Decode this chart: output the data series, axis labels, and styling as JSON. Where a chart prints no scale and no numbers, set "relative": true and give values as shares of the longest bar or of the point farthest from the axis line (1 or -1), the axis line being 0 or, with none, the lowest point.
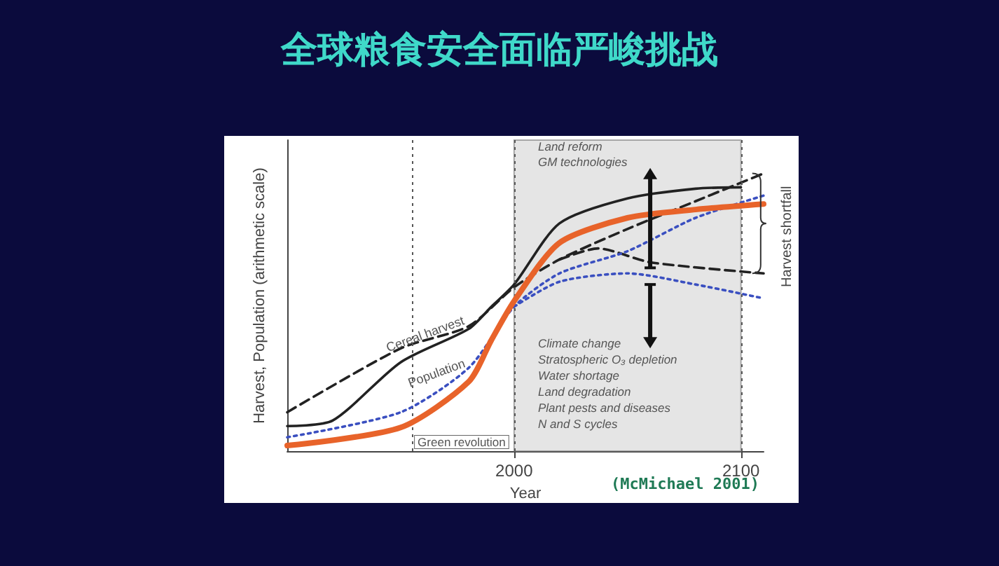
{
  "chart_data": {
    "type": "line",
    "title": "全球粮食安全面临严峻挑战",
    "xlabel": "Year",
    "ylabel": "Harvest, Population (arithmetic scale)",
    "relative": true,
    "xlim": [
      1900,
      2110
    ],
    "xticks": [
      2000,
      2100
    ],
    "marker": "none",
    "series": [
      {
        "color": "#222222",
        "line_style": "solid",
        "x": [
          1900,
          1920,
          1950,
          1980,
          1990,
          2000,
          2020,
          2050,
          2080,
          2100
        ],
        "values": [
          0.09,
          0.11,
          0.32,
          0.44,
          0.52,
          0.6,
          0.82,
          0.91,
          0.945,
          0.95
        ]
      },
      {
        "color": "#222222",
        "line_style": "dashed",
        "x": [
          1900,
          1950,
          1980,
          2000,
          2020,
          2050,
          2080,
          2110
        ],
        "values": [
          0.14,
          0.37,
          0.45,
          0.59,
          0.69,
          0.8,
          0.9,
          1.0
        ]
      },
      {
        "color": "#222222",
        "line_style": "dashed",
        "x": [
          2020,
          2037,
          2060,
          2110
        ],
        "values": [
          0.69,
          0.73,
          0.68,
          0.64
        ]
      },
      {
        "color": "#3a4fc0",
        "line_style": "dotted",
        "x": [
          1900,
          1950,
          1980,
          2000,
          2020,
          2050,
          2080,
          2110
        ],
        "values": [
          0.05,
          0.14,
          0.3,
          0.52,
          0.64,
          0.72,
          0.84,
          0.92
        ]
      },
      {
        "color": "#3a4fc0",
        "line_style": "dotted",
        "x": [
          2000,
          2020,
          2050,
          2080,
          2110
        ],
        "values": [
          0.52,
          0.61,
          0.64,
          0.6,
          0.55
        ]
      },
      {
        "color": "#e8632a",
        "line_style": "solid",
        "x": [
          1900,
          1950,
          1980,
          1990,
          2000,
          2020,
          2050,
          2080,
          2110
        ],
        "values": [
          0.02,
          0.085,
          0.25,
          0.4,
          0.54,
          0.75,
          0.84,
          0.87,
          0.89
        ]
      }
    ],
    "ref_lines": [
      {
        "axis": "x",
        "value": 1955,
        "label": "Green revolution",
        "line_style": "dotted",
        "color": "#555555"
      },
      {
        "axis": "x",
        "value": 2000,
        "line_style": "dotted",
        "color": "#555555"
      },
      {
        "axis": "x",
        "value": 2100,
        "line_style": "dotted",
        "color": "#555555"
      }
    ],
    "bands": [
      {
        "axis": "x",
        "from": 2000,
        "to": 2100,
        "color": "#d4d4d4"
      }
    ],
    "annotations": [
      "Land reform\nGM technologies",
      "Climate change\nStratospheric O₃ depletion\nWater shortage\nLand degradation\nPlant pests and diseases\nN and S cycles",
      "Harvest shortfall",
      "(McMichael 2001)",
      {
        "text": "Cereal harvest",
        "x": 1963,
        "y": 0.38
      },
      {
        "text": "Population",
        "x": 1968,
        "y": 0.24
      }
    ]
  }
}
